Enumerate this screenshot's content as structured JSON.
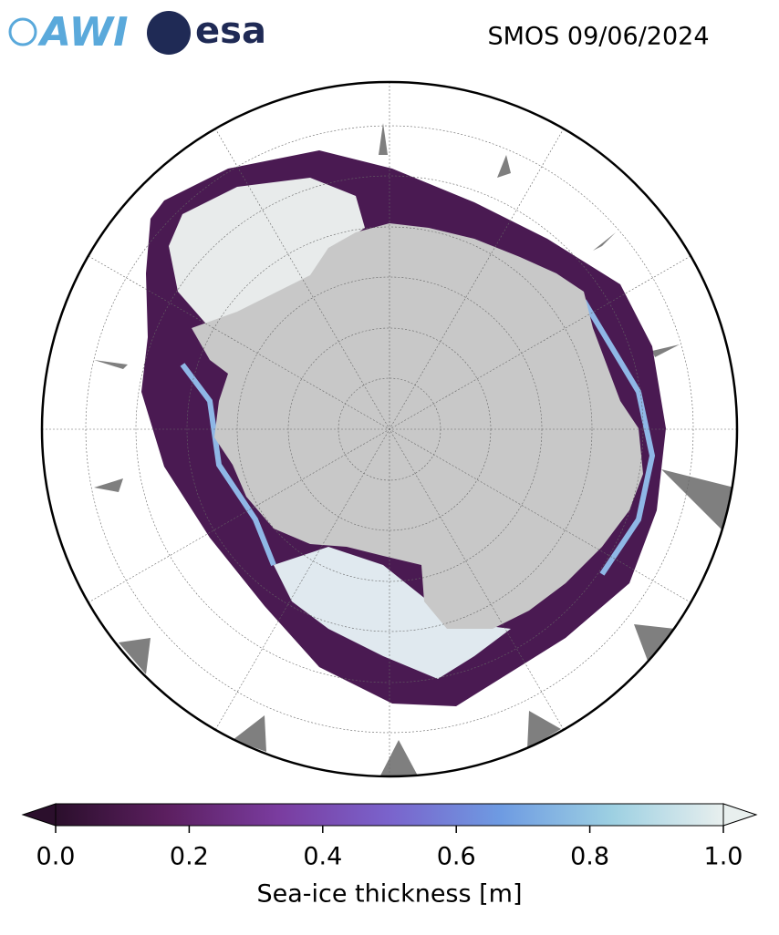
{
  "title": "SMOS 09/06/2024",
  "logos": [
    "AWI",
    "esa"
  ],
  "colorbar": {
    "label": "Sea-ice thickness [m]",
    "range": [
      0,
      1
    ],
    "ticks": [
      {
        "value": 0,
        "label": "0.0"
      },
      0.2,
      0.4,
      0.6,
      0.8,
      {
        "value": 1,
        "label": "1.0"
      }
    ],
    "colors": [
      "#2b0f2c",
      "#5c1f60",
      "#7a3c9f",
      "#7a63cc",
      "#6e9be2",
      "#9dd0e2",
      "#e8efee"
    ]
  }
}
